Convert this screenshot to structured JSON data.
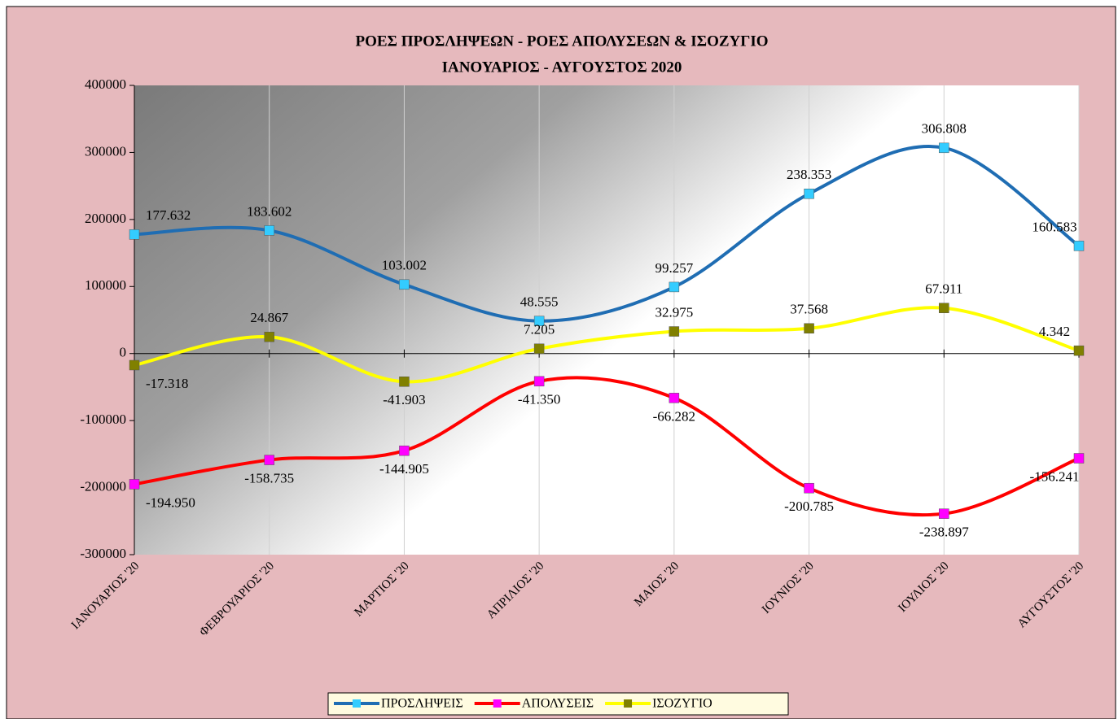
{
  "chart_data": {
    "type": "line",
    "title": [
      "ΡΟΕΣ ΠΡΟΣΛΗΨΕΩΝ -  ΡΟΕΣ ΑΠΟΛΥΣΕΩΝ  & ΙΣΟΖΥΓΙΟ",
      "ΙΑΝΟΥΑΡΙΟΣ  -  ΑΥΓΟΥΣΤΟΣ  2020"
    ],
    "categories": [
      "ΙΑΝΟΥΑΡΙΟΣ '20",
      "ΦΕΒΡΟΥΑΡΙΟΣ '20",
      "ΜΑΡΤΙΟΣ '20",
      "ΑΠΡΙΛΙΟΣ '20",
      "ΜΑΙΟΣ '20",
      "ΙΟΥΝΙΟΣ '20",
      "ΙΟΥΛΙΟΣ '20",
      "ΑΥΓΟΥΣΤΟΣ '20"
    ],
    "series": [
      {
        "name": "ΠΡΟΣΛΗΨΕΙΣ",
        "color": "#1f6db3",
        "marker_color": "#33ccff",
        "values": [
          177632,
          183602,
          103002,
          48555,
          99257,
          238353,
          306808,
          160583
        ],
        "value_labels": [
          "177.632",
          "183.602",
          "103.002",
          "48.555",
          "99.257",
          "238.353",
          "306.808",
          "160.583"
        ]
      },
      {
        "name": "ΑΠΟΛΥΣΕΙΣ",
        "color": "#ff0000",
        "marker_color": "#ff00ff",
        "values": [
          -194950,
          -158735,
          -144905,
          -41350,
          -66282,
          -200785,
          -238897,
          -156241
        ],
        "value_labels": [
          "-194.950",
          "-158.735",
          "-144.905",
          "-41.350",
          "-66.282",
          "-200.785",
          "-238.897",
          "-156.241"
        ]
      },
      {
        "name": "ΙΣΟΖΥΓΙΟ",
        "color": "#ffff00",
        "marker_color": "#808000",
        "values": [
          -17318,
          24867,
          -41903,
          7205,
          32975,
          37568,
          67911,
          4342
        ],
        "value_labels": [
          "-17.318",
          "24.867",
          "-41.903",
          "7.205",
          "32.975",
          "37.568",
          "67.911",
          "4.342"
        ]
      }
    ],
    "ylim": [
      -300000,
      400000
    ],
    "yticks": [
      -300000,
      -200000,
      -100000,
      0,
      100000,
      200000,
      300000,
      400000
    ],
    "grid": true,
    "smooth": true,
    "legend": "bottom"
  }
}
